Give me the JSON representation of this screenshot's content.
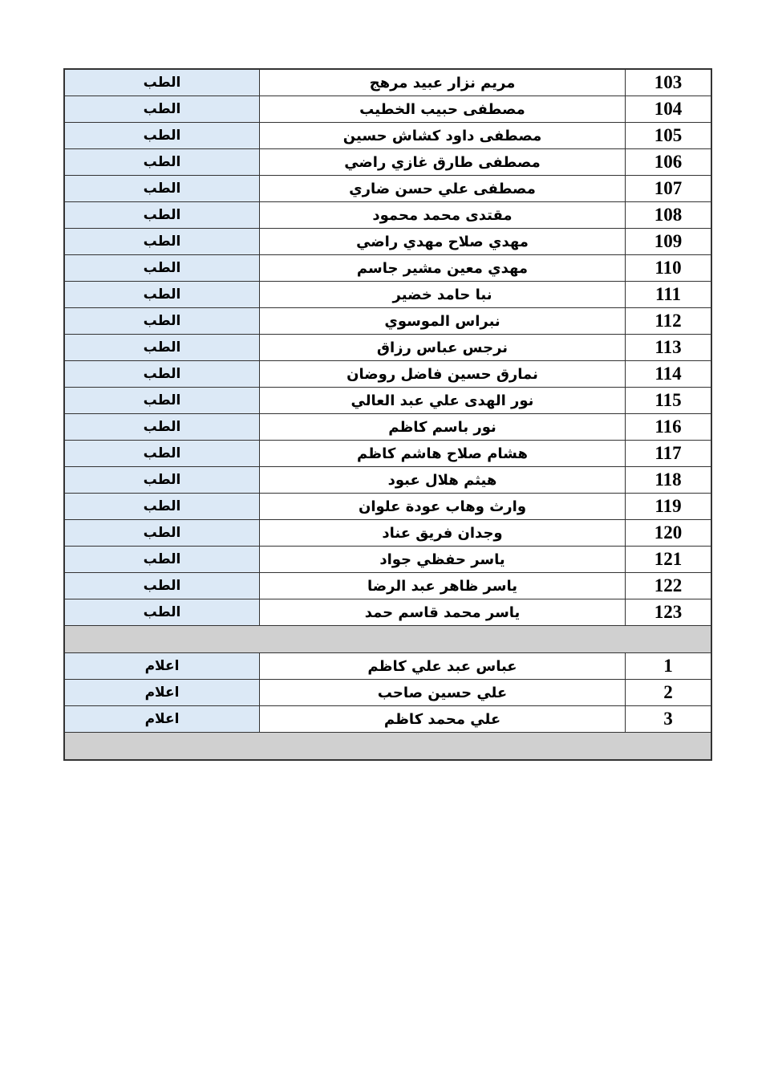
{
  "section1": [
    {
      "num": "103",
      "name": "مريم نزار عبيد مرهج",
      "dept": "الطب"
    },
    {
      "num": "104",
      "name": "مصطفى حبيب الخطيب",
      "dept": "الطب"
    },
    {
      "num": "105",
      "name": "مصطفى داود كشاش حسين",
      "dept": "الطب"
    },
    {
      "num": "106",
      "name": "مصطفى طارق غازي راضي",
      "dept": "الطب"
    },
    {
      "num": "107",
      "name": "مصطفى علي حسن ضاري",
      "dept": "الطب"
    },
    {
      "num": "108",
      "name": "مقتدى محمد محمود",
      "dept": "الطب"
    },
    {
      "num": "109",
      "name": "مهدي صلاح مهدي راضي",
      "dept": "الطب"
    },
    {
      "num": "110",
      "name": "مهدي معين مشير جاسم",
      "dept": "الطب"
    },
    {
      "num": "111",
      "name": "نبا حامد خضير",
      "dept": "الطب"
    },
    {
      "num": "112",
      "name": "نبراس الموسوي",
      "dept": "الطب"
    },
    {
      "num": "113",
      "name": "نرجس عباس رزاق",
      "dept": "الطب"
    },
    {
      "num": "114",
      "name": "نمارق حسين فاضل روضان",
      "dept": "الطب"
    },
    {
      "num": "115",
      "name": "نور الهدى علي عبد العالي",
      "dept": "الطب"
    },
    {
      "num": "116",
      "name": "نور باسم كاظم",
      "dept": "الطب"
    },
    {
      "num": "117",
      "name": "هشام صلاح هاشم كاظم",
      "dept": "الطب"
    },
    {
      "num": "118",
      "name": "هيثم هلال عبود",
      "dept": "الطب"
    },
    {
      "num": "119",
      "name": "وارث وهاب عودة علوان",
      "dept": "الطب"
    },
    {
      "num": "120",
      "name": "وجدان فريق عناد",
      "dept": "الطب"
    },
    {
      "num": "121",
      "name": "ياسر حفظي جواد",
      "dept": "الطب"
    },
    {
      "num": "122",
      "name": "ياسر ظاهر عبد الرضا",
      "dept": "الطب"
    },
    {
      "num": "123",
      "name": "ياسر محمد قاسم حمد",
      "dept": "الطب"
    }
  ],
  "section2": [
    {
      "num": "1",
      "name": "عباس عبد علي كاظم",
      "dept": "اعلام"
    },
    {
      "num": "2",
      "name": "علي حسين صاحب",
      "dept": "اعلام"
    },
    {
      "num": "3",
      "name": "علي محمد كاظم",
      "dept": "اعلام"
    }
  ]
}
